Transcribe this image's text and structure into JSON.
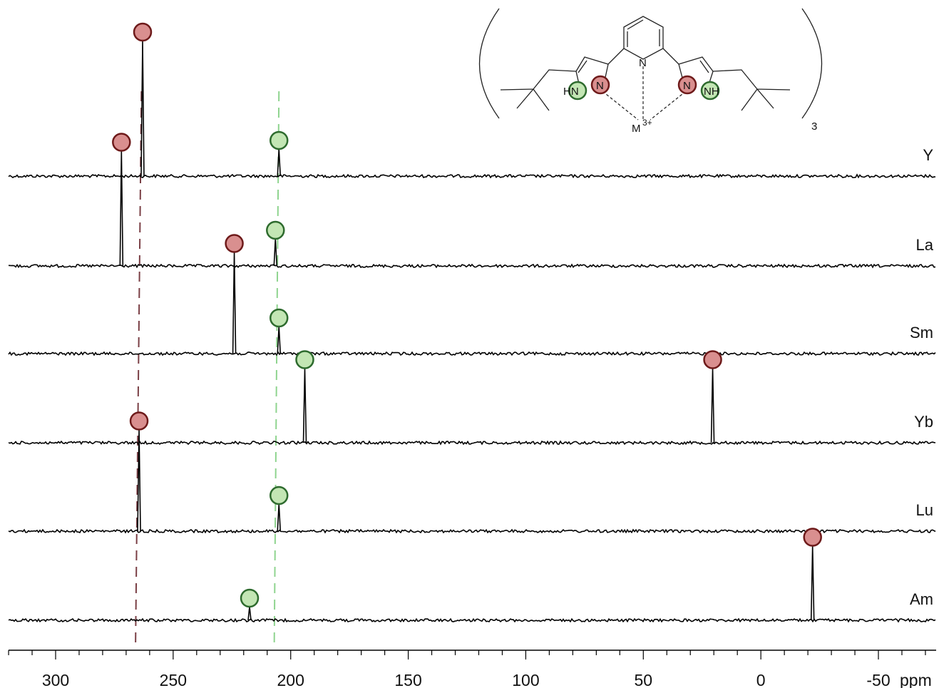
{
  "chart_data": {
    "type": "line",
    "xlabel": "ppm",
    "xlim": [
      321,
      -75
    ],
    "x_ticks": [
      300,
      250,
      200,
      150,
      100,
      50,
      0,
      -50
    ],
    "x_tick_labels": [
      "300",
      "250",
      "200",
      "150",
      "100",
      "50",
      "0",
      "-50"
    ],
    "grid": false,
    "colors": {
      "red_marker_fill": "#d98f8f",
      "red_marker_edge": "#6e1a1a",
      "green_marker_fill": "#c3e6b4",
      "green_marker_edge": "#2e6b2e",
      "red_reference_line": "#7a3f45",
      "green_reference_line": "#8fd48f"
    },
    "series": [
      {
        "name": "Y",
        "peaks": [
          {
            "x": 263.0,
            "height": 1.0,
            "marker": "red"
          },
          {
            "x": 205.0,
            "height": 0.2,
            "marker": "green"
          }
        ]
      },
      {
        "name": "La",
        "peaks": [
          {
            "x": 272.0,
            "height": 0.85,
            "marker": "red"
          },
          {
            "x": 206.5,
            "height": 0.2,
            "marker": "green"
          }
        ]
      },
      {
        "name": "Sm",
        "peaks": [
          {
            "x": 224.0,
            "height": 0.75,
            "marker": "red"
          },
          {
            "x": 205.0,
            "height": 0.2,
            "marker": "green"
          }
        ]
      },
      {
        "name": "Yb",
        "peaks": [
          {
            "x": 194.0,
            "height": 0.55,
            "marker": "green"
          },
          {
            "x": 20.5,
            "height": 0.55,
            "marker": "red"
          }
        ]
      },
      {
        "name": "Lu",
        "peaks": [
          {
            "x": 264.5,
            "height": 0.75,
            "marker": "red"
          },
          {
            "x": 205.0,
            "height": 0.2,
            "marker": "green"
          }
        ]
      },
      {
        "name": "Am",
        "peaks": [
          {
            "x": 217.5,
            "height": 0.1,
            "marker": "green"
          },
          {
            "x": -22.0,
            "height": 0.55,
            "marker": "red"
          }
        ]
      }
    ],
    "reference_lines": [
      {
        "color": "red",
        "x_top": 263.5,
        "x_bottom": 266.0
      },
      {
        "color": "green",
        "x_top": 205.0,
        "x_bottom": 207.0
      }
    ]
  },
  "structure": {
    "atom_labels": {
      "pyridine_n": "N",
      "left_nh": "HN",
      "left_n": "N",
      "right_n": "N",
      "right_nh": "NH",
      "metal": "M",
      "metal_charge": "3+"
    },
    "subscript": "3"
  }
}
